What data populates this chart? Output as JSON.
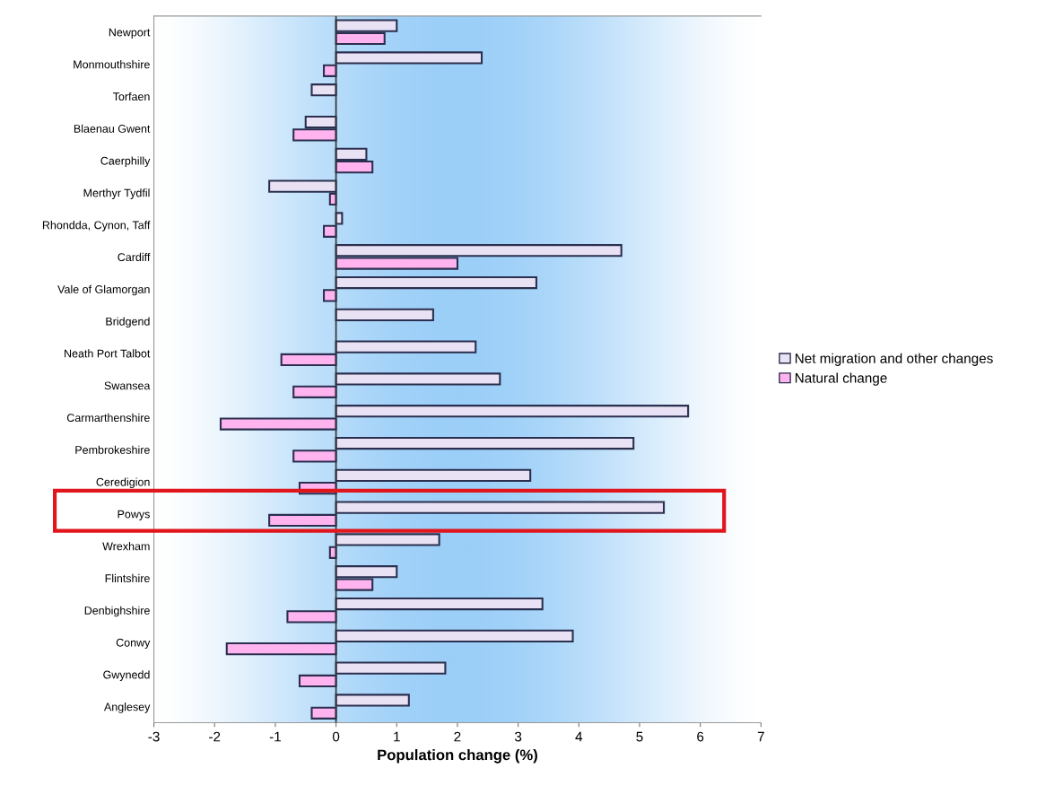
{
  "chart_data": {
    "type": "bar",
    "orientation": "horizontal",
    "xlabel": "Population change (%)",
    "categories": [
      "Newport",
      "Monmouthshire",
      "Torfaen",
      "Blaenau Gwent",
      "Caerphilly",
      "Merthyr Tydfil",
      "Rhondda, Cynon, Taff",
      "Cardiff",
      "Vale of Glamorgan",
      "Bridgend",
      "Neath Port Talbot",
      "Swansea",
      "Carmarthenshire",
      "Pembrokeshire",
      "Ceredigion",
      "Powys",
      "Wrexham",
      "Flintshire",
      "Denbighshire",
      "Conwy",
      "Gwynedd",
      "Anglesey"
    ],
    "series": [
      {
        "name": "Net migration and other changes",
        "color": "#e8e2f4",
        "values": [
          1.0,
          2.4,
          -0.4,
          -0.5,
          0.5,
          -1.1,
          0.1,
          4.7,
          3.3,
          1.6,
          2.3,
          2.7,
          5.8,
          4.9,
          3.2,
          5.4,
          1.7,
          1.0,
          3.4,
          3.9,
          1.8,
          1.2
        ]
      },
      {
        "name": "Natural change",
        "color": "#ffb4f0",
        "values": [
          0.8,
          -0.2,
          null,
          -0.7,
          0.6,
          -0.1,
          -0.2,
          2.0,
          -0.2,
          null,
          -0.9,
          -0.7,
          -1.9,
          -0.7,
          -0.6,
          -1.1,
          -0.1,
          0.6,
          -0.8,
          -1.8,
          -0.6,
          -0.4
        ]
      }
    ],
    "xlim": [
      -3,
      7
    ],
    "xticks": [
      -3,
      -2,
      -1,
      0,
      1,
      2,
      3,
      4,
      5,
      6,
      7
    ],
    "ref_lines": [
      {
        "axis": "x",
        "value": 0,
        "color": "#333333"
      }
    ],
    "legend": "right",
    "grid": false
  }
}
